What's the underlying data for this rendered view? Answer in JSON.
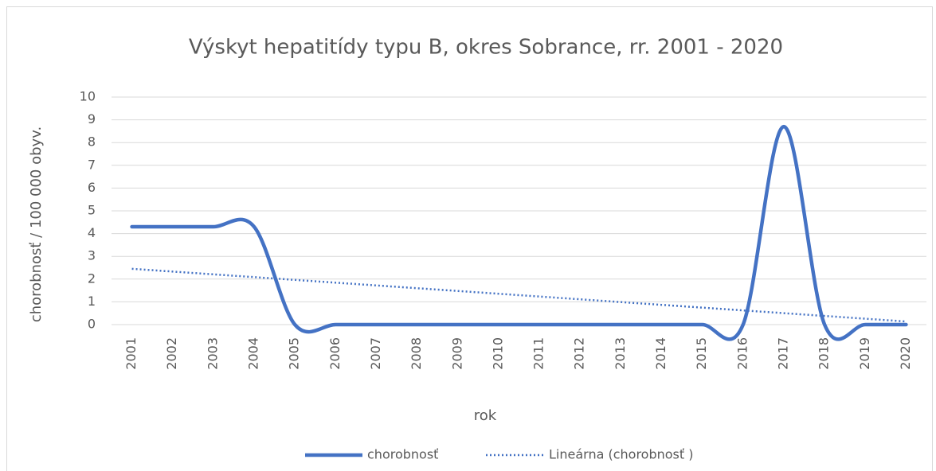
{
  "chart_data": {
    "type": "line",
    "title": "Výskyt hepatitídy typu B, okres Sobrance, rr. 2001 - 2020",
    "x_label": "rok",
    "y_label": "chorobnosť / 100 000 obyv.",
    "categories": [
      "2001",
      "2002",
      "2003",
      "2004",
      "2005",
      "2006",
      "2007",
      "2008",
      "2009",
      "2010",
      "2011",
      "2012",
      "2013",
      "2014",
      "2015",
      "2016",
      "2017",
      "2018",
      "2019",
      "2020"
    ],
    "series": [
      {
        "name": "chorobnosť",
        "color": "#4472c4",
        "smooth": true,
        "values": [
          4.3,
          4.3,
          4.3,
          4.3,
          0,
          0,
          0,
          0,
          0,
          0,
          0,
          0,
          0,
          0,
          0,
          0,
          8.7,
          0,
          0,
          0
        ]
      }
    ],
    "trendline": {
      "name": "Lineárna (chorobnosť )",
      "type": "linear",
      "color": "#4472c4"
    },
    "ylim": [
      0,
      10
    ],
    "yticks": [
      0,
      1,
      2,
      3,
      4,
      5,
      6,
      7,
      8,
      9,
      10
    ],
    "grid": true,
    "legend": "bottom"
  }
}
